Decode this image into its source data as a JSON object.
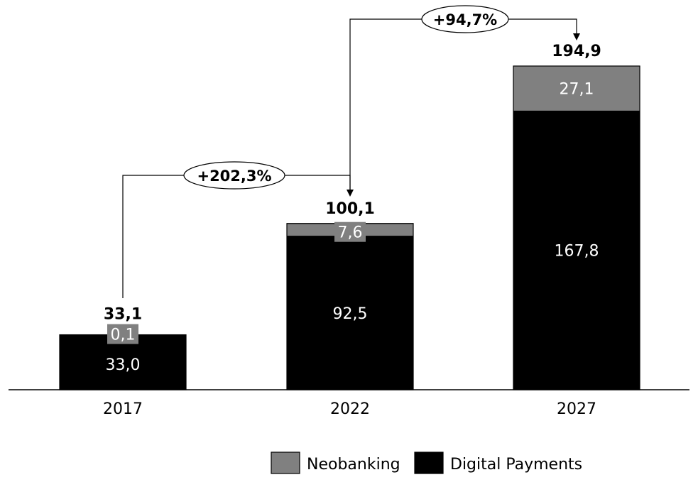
{
  "chart_data": {
    "type": "bar",
    "stacked": true,
    "categories": [
      "2017",
      "2022",
      "2027"
    ],
    "series": [
      {
        "name": "Digital Payments",
        "values": [
          33.0,
          92.5,
          167.8
        ],
        "labels": [
          "33,0",
          "92,5",
          "167,8"
        ],
        "color": "#000000"
      },
      {
        "name": "Neobanking",
        "values": [
          0.1,
          7.6,
          27.1
        ],
        "labels": [
          "0,1",
          "7,6",
          "27,1"
        ],
        "color": "#808080"
      }
    ],
    "totals": [
      33.1,
      100.1,
      194.9
    ],
    "total_labels": [
      "33,1",
      "100,1",
      "194,9"
    ],
    "growth": [
      {
        "from": "2017",
        "to": "2022",
        "label": "+202,3%"
      },
      {
        "from": "2022",
        "to": "2027",
        "label": "+94,7%"
      }
    ],
    "ylim": [
      0,
      194.9
    ],
    "grid": false,
    "legend_position": "bottom-right",
    "legend_order": [
      "Neobanking",
      "Digital Payments"
    ]
  }
}
